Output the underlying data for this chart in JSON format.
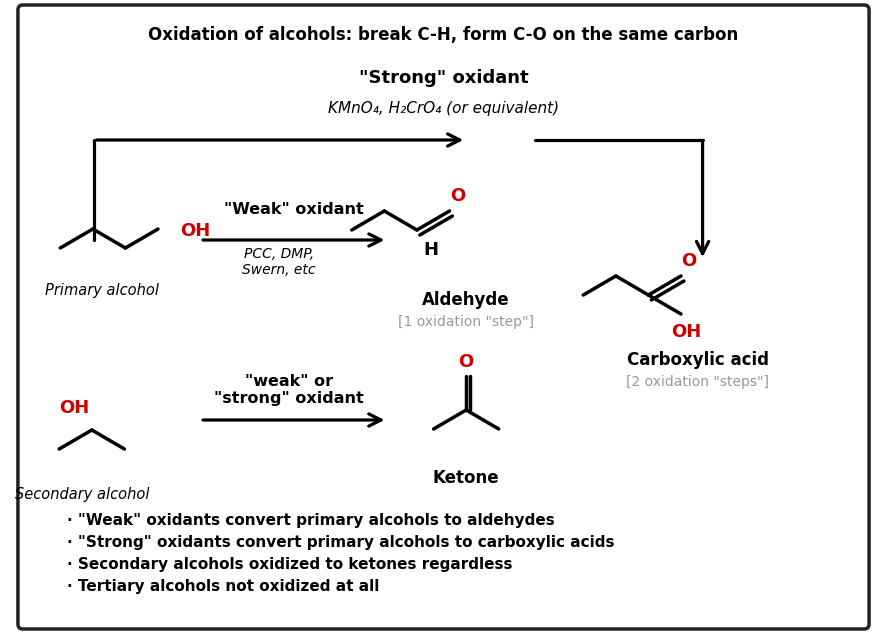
{
  "title": "Oxidation of alcohols: break C-H, form C-O on the same carbon",
  "background_color": "#f5f5f5",
  "border_color": "#222222",
  "text_color": "#000000",
  "red_color": "#cc0000",
  "gray_color": "#999999",
  "strong_oxidant_label": "\"Strong\" oxidant",
  "strong_oxidant_reagents": "KMnO₄, H₂CrO₄ (or equivalent)",
  "weak_oxidant_label": "\"Weak\" oxidant",
  "weak_oxidant_reagents": "PCC, DMP,\nSwern, etc",
  "weak_strong_label": "\"weak\" or\n\"strong\" oxidant",
  "primary_alcohol_label": "Primary alcohol",
  "secondary_alcohol_label": "Secondary alcohol",
  "aldehyde_label": "Aldehyde",
  "aldehyde_step": "[1 oxidation \"step\"]",
  "ketone_label": "Ketone",
  "carboxylic_label": "Carboxylic acid",
  "carboxylic_step": "[2 oxidation \"steps\"]",
  "bullet_points": [
    "· \"Weak\" oxidants convert primary alcohols to aldehydes",
    "· \"Strong\" oxidants convert primary alcohols to carboxylic acids",
    "· Secondary alcohols oxidized to ketones regardless",
    "· Tertiary alcohols not oxidized at all"
  ]
}
